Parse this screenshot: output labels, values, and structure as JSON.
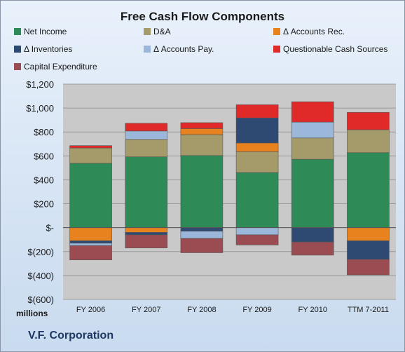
{
  "chart_data": {
    "type": "bar",
    "stacked": true,
    "title": "Free Cash Flow Components",
    "company": "V.F. Corporation",
    "unit_label": "millions",
    "categories": [
      "FY 2006",
      "FY 2007",
      "FY 2008",
      "FY 2009",
      "FY 2010",
      "TTM 7-2011"
    ],
    "ylim": [
      -600,
      1200
    ],
    "yticks": [
      1200,
      1000,
      800,
      600,
      400,
      200,
      0,
      -200,
      -400,
      -600
    ],
    "ytick_labels": [
      "$1,200",
      "$1,000",
      "$800",
      "$600",
      "$400",
      "$200",
      "$-",
      "$(200)",
      "$(400)",
      "$(600)"
    ],
    "grid": true,
    "legend_position": "top",
    "series": [
      {
        "name": "Net Income",
        "color": "#2e8b57",
        "values": [
          538,
          592,
          603,
          461,
          572,
          627
        ]
      },
      {
        "name": "D&A",
        "color": "#a59a6a",
        "values": [
          128,
          146,
          175,
          174,
          178,
          192
        ]
      },
      {
        "name": "Δ Accounts Rec.",
        "color": "#e7821e",
        "values": [
          -110,
          -40,
          50,
          73,
          0,
          -110
        ]
      },
      {
        "name": "Δ Inventories",
        "color": "#2f4a72",
        "values": [
          -20,
          -20,
          -30,
          210,
          -120,
          -155
        ]
      },
      {
        "name": "Δ Accounts Pay.",
        "color": "#9bb7d9",
        "values": [
          -20,
          70,
          -60,
          -60,
          133,
          0
        ]
      },
      {
        "name": "Questionable Cash Sources",
        "color": "#e02a2a",
        "values": [
          20,
          65,
          50,
          110,
          170,
          145
        ]
      },
      {
        "name": "Capital Expenditure",
        "color": "#9a4c52",
        "values": [
          -120,
          -110,
          -120,
          -85,
          -110,
          -130
        ]
      }
    ]
  }
}
